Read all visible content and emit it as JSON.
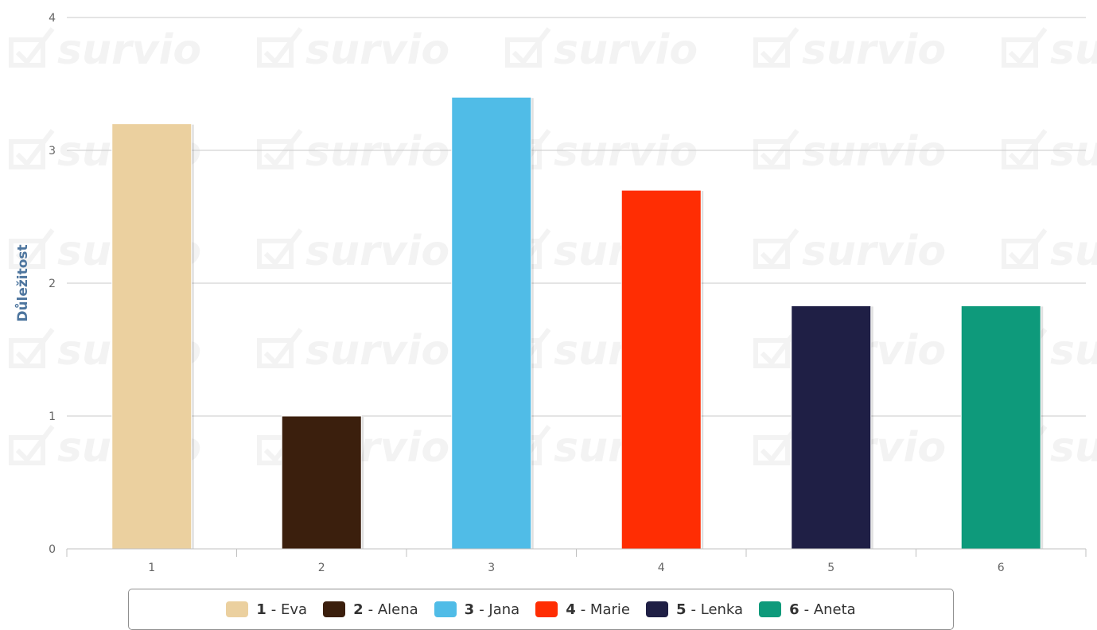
{
  "chart_data": {
    "type": "bar",
    "title": "",
    "ylabel": "Důležitost",
    "xlabel": "",
    "categories": [
      "1",
      "2",
      "3",
      "4",
      "5",
      "6"
    ],
    "values": [
      3.2,
      1.0,
      3.4,
      2.7,
      1.83,
      1.83
    ],
    "colors": [
      "#ebd09f",
      "#3b1f0d",
      "#50bce7",
      "#ff2d03",
      "#1f1f45",
      "#0e9a7b"
    ],
    "ylim": [
      0,
      4
    ],
    "yticks": [
      "0",
      "1",
      "2",
      "3",
      "4"
    ],
    "grid": true,
    "legend_position": "bottom",
    "legend": [
      {
        "num": "1",
        "label": " - Eva",
        "color": "#ebd09f"
      },
      {
        "num": "2",
        "label": " - Alena",
        "color": "#3b1f0d"
      },
      {
        "num": "3",
        "label": " - Jana",
        "color": "#50bce7"
      },
      {
        "num": "4",
        "label": " - Marie",
        "color": "#ff2d03"
      },
      {
        "num": "5",
        "label": " - Lenka",
        "color": "#1f1f45"
      },
      {
        "num": "6",
        "label": " - Aneta",
        "color": "#0e9a7b"
      }
    ]
  },
  "watermark": {
    "text": "survio",
    "icon": "checkbox-icon"
  }
}
